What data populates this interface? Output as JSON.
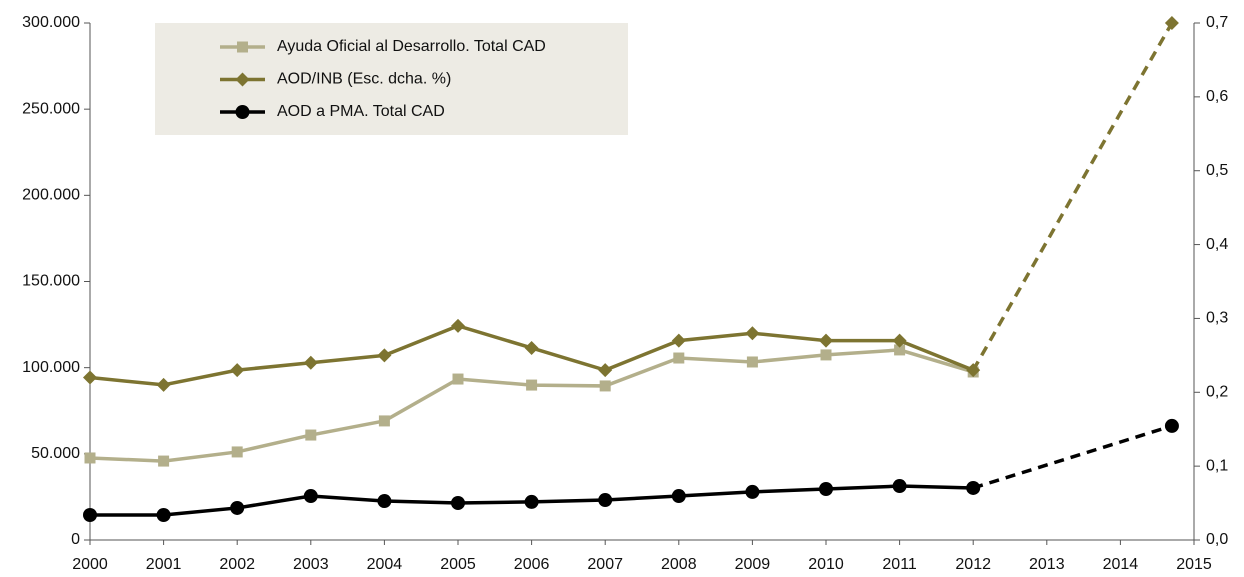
{
  "chart_data": {
    "type": "line",
    "x": [
      2000,
      2001,
      2002,
      2003,
      2004,
      2005,
      2006,
      2007,
      2008,
      2009,
      2010,
      2011,
      2012,
      2014.7
    ],
    "xlim": [
      2000,
      2015
    ],
    "xticks": [
      2000,
      2001,
      2002,
      2003,
      2004,
      2005,
      2006,
      2007,
      2008,
      2009,
      2010,
      2011,
      2012,
      2013,
      2014,
      2015
    ],
    "ylim": [
      0,
      300000
    ],
    "yticks": [
      0,
      {
        "value": 50000,
        "label": "50.000"
      },
      {
        "value": 100000,
        "label": "100.000"
      },
      {
        "value": 150000,
        "label": "150.000"
      },
      {
        "value": 200000,
        "label": "200.000"
      },
      {
        "value": 250000,
        "label": "250.000"
      },
      {
        "value": 300000,
        "label": "300.000"
      }
    ],
    "y2lim": [
      0,
      0.7
    ],
    "y2ticks": [
      {
        "value": 0,
        "label": "0,0"
      },
      {
        "value": 0.1,
        "label": "0,1"
      },
      {
        "value": 0.2,
        "label": "0,2"
      },
      {
        "value": 0.3,
        "label": "0,3"
      },
      {
        "value": 0.4,
        "label": "0,4"
      },
      {
        "value": 0.5,
        "label": "0,5"
      },
      {
        "value": 0.6,
        "label": "0,6"
      },
      {
        "value": 0.7,
        "label": "0,7"
      }
    ],
    "series": [
      {
        "name": "Ayuda Oficial al Desarrollo. Total CAD",
        "color": "#b3af8b",
        "marker": "square",
        "dash_from_index": 12,
        "values": [
          47600,
          45800,
          51100,
          60900,
          69100,
          93400,
          89900,
          89400,
          105600,
          103300,
          107400,
          110300,
          97500,
          null
        ]
      },
      {
        "name": "AOD/INB (Esc. dcha. %)",
        "color": "#7d7431",
        "marker": "diamond",
        "axis": "y2",
        "dash_from_index": 12,
        "values": [
          0.22,
          0.21,
          0.23,
          0.24,
          0.25,
          0.29,
          0.26,
          0.23,
          0.27,
          0.28,
          0.27,
          0.27,
          0.23,
          0.7
        ]
      },
      {
        "name": "AOD a PMA. Total CAD",
        "color": "#000000",
        "marker": "circle",
        "dash_from_index": 12,
        "values": [
          14500,
          14500,
          18600,
          25500,
          22600,
          21500,
          22100,
          23200,
          25500,
          27900,
          29600,
          31300,
          30200,
          66200
        ]
      }
    ]
  }
}
